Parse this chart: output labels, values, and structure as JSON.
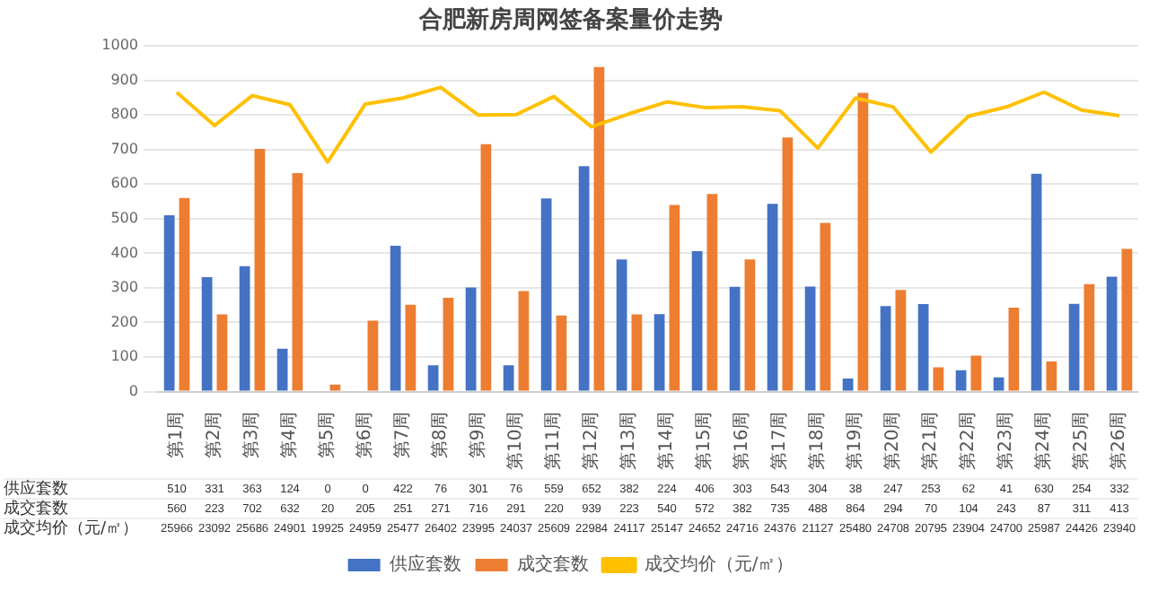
{
  "chart_data": {
    "type": "bar",
    "title": "合肥新房周网签备案量价走势",
    "categories": [
      "第1周",
      "第2周",
      "第3周",
      "第4周",
      "第5周",
      "第6周",
      "第7周",
      "第8周",
      "第9周",
      "第10周",
      "第11周",
      "第12周",
      "第13周",
      "第14周",
      "第15周",
      "第16周",
      "第17周",
      "第18周",
      "第19周",
      "第20周",
      "第21周",
      "第22周",
      "第23周",
      "第24周",
      "第25周",
      "第26周"
    ],
    "series": [
      {
        "name": "供应套数",
        "color": "#4472c4",
        "values": [
          510,
          331,
          363,
          124,
          0,
          0,
          422,
          76,
          301,
          76,
          559,
          652,
          382,
          224,
          406,
          303,
          543,
          304,
          38,
          247,
          253,
          62,
          41,
          630,
          254,
          332
        ]
      },
      {
        "name": "成交套数",
        "color": "#ed7d31",
        "values": [
          560,
          223,
          702,
          632,
          20,
          205,
          251,
          271,
          716,
          291,
          220,
          939,
          223,
          540,
          572,
          382,
          735,
          488,
          864,
          294,
          70,
          104,
          243,
          87,
          311,
          413
        ]
      },
      {
        "name": "成交均价（元/㎡）",
        "type": "line",
        "axis": "y2",
        "color": "#ffc000",
        "values": [
          25966,
          23092,
          25686,
          24901,
          19925,
          24959,
          25477,
          26402,
          23995,
          24037,
          25609,
          22984,
          24117,
          25147,
          24652,
          24716,
          24376,
          21127,
          25480,
          24708,
          20795,
          23904,
          24700,
          25987,
          24426,
          23940
        ]
      }
    ],
    "ylim": [
      0,
      1000
    ],
    "yticks": [
      0,
      100,
      200,
      300,
      400,
      500,
      600,
      700,
      800,
      900,
      1000
    ],
    "y2lim": [
      0,
      30000
    ],
    "grid": "y",
    "legend": "bottom",
    "data_labels": true,
    "marker": "none"
  }
}
